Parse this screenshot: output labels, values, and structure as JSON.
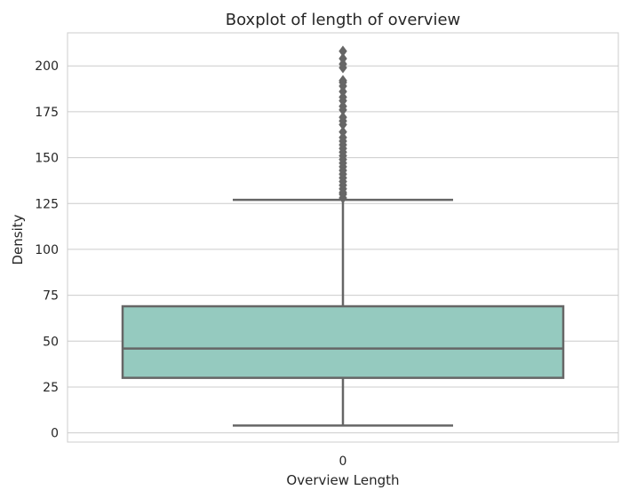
{
  "chart_data": {
    "type": "boxplot",
    "title": "Boxplot of length of overview",
    "xlabel": "Overview Length",
    "ylabel": "Density",
    "categories": [
      "0"
    ],
    "ylim": [
      -5,
      218
    ],
    "yticks": [
      0,
      25,
      50,
      75,
      100,
      125,
      150,
      175,
      200
    ],
    "grid": true,
    "box": {
      "whisker_low": 4,
      "q1": 30,
      "median": 46,
      "q3": 69,
      "whisker_high": 127,
      "outliers": [
        128,
        130,
        131,
        133,
        135,
        137,
        139,
        141,
        143,
        145,
        147,
        149,
        151,
        153,
        155,
        157,
        159,
        161,
        164,
        168,
        170,
        172,
        176,
        178,
        181,
        183,
        186,
        189,
        191,
        192,
        199,
        201,
        204,
        208
      ]
    },
    "colors": {
      "box_fill": "#95cabf",
      "box_line": "#666666",
      "grid": "#cccccc",
      "spine": "#cccccc",
      "outlier": "#666666"
    }
  }
}
